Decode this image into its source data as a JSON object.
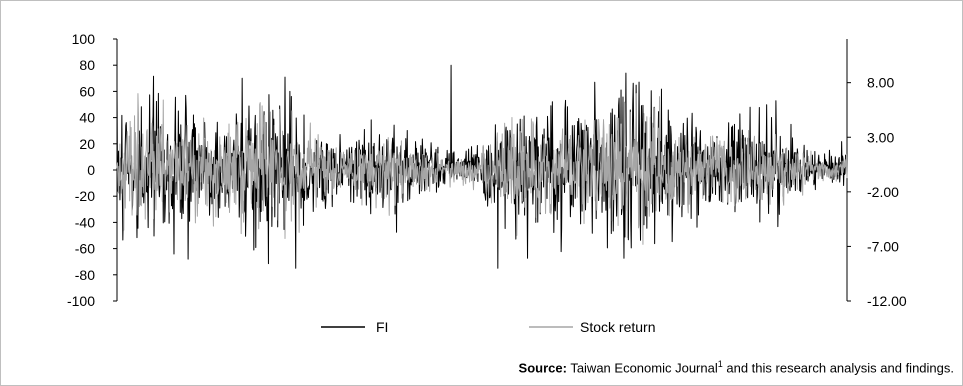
{
  "chart_data": {
    "type": "line",
    "primary_axis": {
      "side": "left",
      "ylim": [
        -100,
        100
      ],
      "ticks": [
        "100",
        "80",
        "60",
        "40",
        "20",
        "0",
        "-20",
        "-40",
        "-60",
        "-80",
        "-100"
      ]
    },
    "secondary_axis": {
      "side": "right",
      "ylim": [
        -12,
        12
      ],
      "ticks": [
        "8.00",
        "3.00",
        "-2.00",
        "-7.00",
        "-12.00"
      ]
    },
    "series": [
      {
        "name": "FI",
        "axis": "left",
        "color": "#000000",
        "samples": 1500,
        "approx_range": [
          -75,
          80
        ],
        "notable_points": [
          {
            "x_index": 0,
            "y": 63
          },
          {
            "x_index": 146,
            "y": -68
          },
          {
            "x_index": 686,
            "y": 80
          },
          {
            "x_index": 782,
            "y": -75
          }
        ]
      },
      {
        "name": "Stock return",
        "axis": "right",
        "color": "#a6a6a6",
        "samples": 1500,
        "approx_range": [
          -7,
          7
        ]
      }
    ],
    "legend": "bottom-center",
    "grid": false
  },
  "legend": {
    "fi_label": "FI",
    "stock_label": "Stock return"
  },
  "source": {
    "label": "Source:",
    "text": " Taiwan Economic Journal",
    "superscript": "1",
    "text2": " and this research analysis and findings."
  }
}
